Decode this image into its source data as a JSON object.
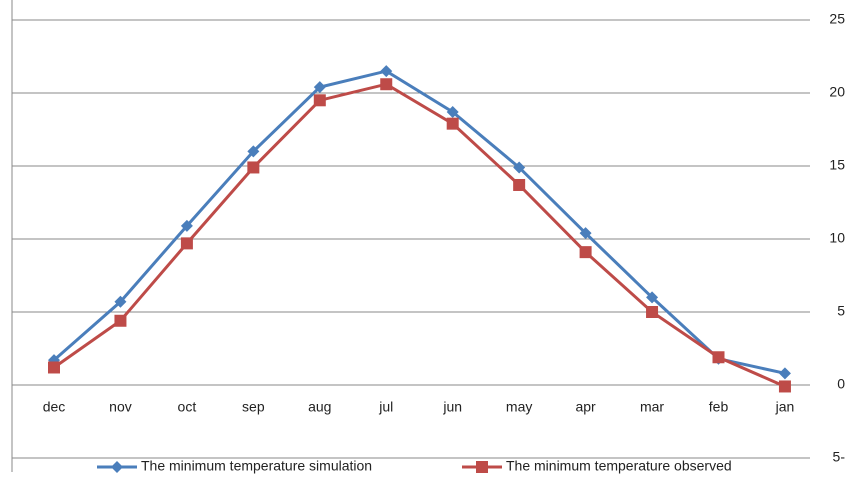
{
  "chart_data": {
    "type": "line",
    "categories": [
      "dec",
      "nov",
      "oct",
      "sep",
      "aug",
      "jul",
      "jun",
      "may",
      "apr",
      "mar",
      "feb",
      "jan"
    ],
    "series": [
      {
        "name": "The minimum temperature simulation",
        "color": "#4a7ebb",
        "marker": "diamond",
        "values": [
          1.7,
          5.7,
          10.9,
          16,
          20.4,
          21.5,
          18.7,
          14.9,
          10.4,
          6,
          1.8,
          0.8
        ]
      },
      {
        "name": "The minimum temperature observed",
        "color": "#be4b48",
        "marker": "square",
        "values": [
          1.2,
          4.4,
          9.7,
          14.9,
          19.5,
          20.6,
          17.9,
          13.7,
          9.1,
          5,
          1.9,
          -0.1
        ]
      }
    ],
    "ylim": [
      -5,
      25
    ],
    "yticks": [
      {
        "value": -5,
        "label": "5-"
      },
      0,
      5,
      10,
      15,
      20,
      25
    ],
    "grid": true
  }
}
